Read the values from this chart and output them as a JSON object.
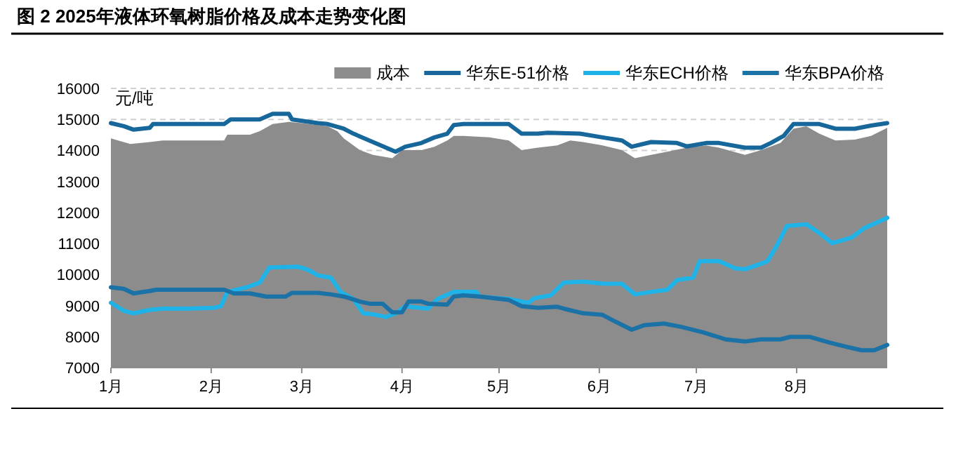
{
  "chart_data": {
    "type": "line",
    "title": "图 2 2025年液体环氧树脂价格及成本走势变化图",
    "ylabel": "元/吨",
    "xlim": [
      "2025-01-01",
      "2025-08-29"
    ],
    "xticks": [
      {
        "value": "2025-01-01",
        "label": "1月"
      },
      {
        "value": "2025-02-01",
        "label": "2月"
      },
      {
        "value": "2025-03-01",
        "label": "3月"
      },
      {
        "value": "2025-04-01",
        "label": "4月"
      },
      {
        "value": "2025-05-01",
        "label": "5月"
      },
      {
        "value": "2025-06-01",
        "label": "6月"
      },
      {
        "value": "2025-07-01",
        "label": "7月"
      },
      {
        "value": "2025-08-01",
        "label": "8月"
      }
    ],
    "ylim": [
      7000,
      16000
    ],
    "yticks": [
      7000,
      8000,
      9000,
      10000,
      11000,
      12000,
      13000,
      14000,
      15000,
      16000
    ],
    "grid": "y",
    "legend": "top right",
    "line_style": "solid",
    "series": [
      {
        "name": "成本",
        "type": "area",
        "color": "#8c8c8c",
        "x": [
          "2025-01-01",
          "2025-01-07",
          "2025-01-13",
          "2025-01-17",
          "2025-02-05",
          "2025-02-06",
          "2025-02-13",
          "2025-02-16",
          "2025-02-20",
          "2025-02-25",
          "2025-03-01",
          "2025-03-09",
          "2025-03-12",
          "2025-03-14",
          "2025-03-19",
          "2025-03-23",
          "2025-03-29",
          "2025-04-01",
          "2025-04-07",
          "2025-04-11",
          "2025-04-15",
          "2025-04-17",
          "2025-04-20",
          "2025-04-28",
          "2025-05-04",
          "2025-05-08",
          "2025-05-13",
          "2025-05-19",
          "2025-05-23",
          "2025-05-27",
          "2025-06-02",
          "2025-06-08",
          "2025-06-12",
          "2025-06-17",
          "2025-06-22",
          "2025-06-28",
          "2025-07-04",
          "2025-07-08",
          "2025-07-16",
          "2025-07-21",
          "2025-07-27",
          "2025-07-31",
          "2025-08-04",
          "2025-08-08",
          "2025-08-13",
          "2025-08-19",
          "2025-08-24",
          "2025-08-29"
        ],
        "values": [
          14390,
          14210,
          14270,
          14320,
          14320,
          14510,
          14510,
          14620,
          14850,
          14920,
          14880,
          14780,
          14620,
          14390,
          14010,
          13860,
          13750,
          14010,
          14010,
          14120,
          14320,
          14470,
          14470,
          14420,
          14320,
          14010,
          14090,
          14160,
          14320,
          14270,
          14160,
          14010,
          13750,
          13860,
          13960,
          14090,
          14160,
          14090,
          13860,
          14010,
          14240,
          14700,
          14780,
          14540,
          14320,
          14350,
          14470,
          14730
        ]
      },
      {
        "name": "华东E-51价格",
        "type": "line",
        "color": "#17679a",
        "x": [
          "2025-01-01",
          "2025-01-05",
          "2025-01-08",
          "2025-01-13",
          "2025-01-14",
          "2025-02-05",
          "2025-02-07",
          "2025-02-16",
          "2025-02-20",
          "2025-02-25",
          "2025-02-26",
          "2025-03-06",
          "2025-03-09",
          "2025-03-14",
          "2025-03-17",
          "2025-03-23",
          "2025-03-30",
          "2025-04-02",
          "2025-04-07",
          "2025-04-11",
          "2025-04-15",
          "2025-04-17",
          "2025-04-20",
          "2025-05-04",
          "2025-05-08",
          "2025-05-13",
          "2025-05-16",
          "2025-05-26",
          "2025-06-02",
          "2025-06-08",
          "2025-06-11",
          "2025-06-17",
          "2025-06-25",
          "2025-06-28",
          "2025-07-04",
          "2025-07-08",
          "2025-07-16",
          "2025-07-21",
          "2025-07-24",
          "2025-07-28",
          "2025-07-31",
          "2025-08-08",
          "2025-08-13",
          "2025-08-19",
          "2025-08-24",
          "2025-08-29"
        ],
        "values": [
          14880,
          14780,
          14670,
          14730,
          14850,
          14850,
          15000,
          15000,
          15180,
          15180,
          15000,
          14880,
          14850,
          14700,
          14540,
          14270,
          13960,
          14120,
          14240,
          14420,
          14540,
          14820,
          14850,
          14850,
          14540,
          14540,
          14570,
          14540,
          14420,
          14320,
          14120,
          14270,
          14240,
          14130,
          14240,
          14240,
          14090,
          14090,
          14240,
          14470,
          14850,
          14850,
          14700,
          14700,
          14800,
          14880
        ]
      },
      {
        "name": "华东ECH价格",
        "type": "line",
        "color": "#1fb2e6",
        "x": [
          "2025-01-01",
          "2025-01-05",
          "2025-01-08",
          "2025-01-13",
          "2025-01-17",
          "2025-01-24",
          "2025-02-02",
          "2025-02-04",
          "2025-02-06",
          "2025-02-12",
          "2025-02-16",
          "2025-02-19",
          "2025-02-28",
          "2025-03-03",
          "2025-03-06",
          "2025-03-10",
          "2025-03-13",
          "2025-03-17",
          "2025-03-20",
          "2025-03-23",
          "2025-03-27",
          "2025-03-30",
          "2025-04-02",
          "2025-04-09",
          "2025-04-12",
          "2025-04-17",
          "2025-04-24",
          "2025-04-25",
          "2025-05-04",
          "2025-05-10",
          "2025-05-12",
          "2025-05-17",
          "2025-05-21",
          "2025-05-27",
          "2025-06-02",
          "2025-06-08",
          "2025-06-12",
          "2025-06-17",
          "2025-06-22",
          "2025-06-25",
          "2025-06-30",
          "2025-07-02",
          "2025-07-08",
          "2025-07-13",
          "2025-07-16",
          "2025-07-21",
          "2025-07-23",
          "2025-07-26",
          "2025-07-29",
          "2025-08-04",
          "2025-08-08",
          "2025-08-12",
          "2025-08-18",
          "2025-08-22",
          "2025-08-29"
        ],
        "values": [
          9090,
          8830,
          8750,
          8860,
          8900,
          8900,
          8930,
          8980,
          9440,
          9590,
          9740,
          10230,
          10250,
          10150,
          9970,
          9900,
          9440,
          9210,
          8750,
          8720,
          8630,
          8750,
          8980,
          8900,
          9210,
          9440,
          9440,
          9290,
          9210,
          9090,
          9240,
          9330,
          9740,
          9770,
          9710,
          9700,
          9360,
          9440,
          9510,
          9820,
          9900,
          10430,
          10430,
          10200,
          10170,
          10350,
          10430,
          10960,
          11570,
          11620,
          11340,
          11010,
          11190,
          11500,
          11830
        ]
      },
      {
        "name": "华东BPA价格",
        "type": "line",
        "color": "#1b72a6",
        "x": [
          "2025-01-01",
          "2025-01-05",
          "2025-01-08",
          "2025-01-13",
          "2025-01-15",
          "2025-02-05",
          "2025-02-08",
          "2025-02-13",
          "2025-02-18",
          "2025-02-24",
          "2025-02-26",
          "2025-03-06",
          "2025-03-10",
          "2025-03-14",
          "2025-03-19",
          "2025-03-22",
          "2025-03-26",
          "2025-03-29",
          "2025-04-01",
          "2025-04-03",
          "2025-04-07",
          "2025-04-09",
          "2025-04-15",
          "2025-04-17",
          "2025-04-20",
          "2025-04-25",
          "2025-05-04",
          "2025-05-08",
          "2025-05-13",
          "2025-05-19",
          "2025-05-21",
          "2025-05-27",
          "2025-06-02",
          "2025-06-06",
          "2025-06-11",
          "2025-06-15",
          "2025-06-21",
          "2025-06-26",
          "2025-07-03",
          "2025-07-10",
          "2025-07-16",
          "2025-07-21",
          "2025-07-27",
          "2025-07-30",
          "2025-08-05",
          "2025-08-11",
          "2025-08-16",
          "2025-08-21",
          "2025-08-25",
          "2025-08-29"
        ],
        "values": [
          9590,
          9540,
          9390,
          9470,
          9510,
          9510,
          9390,
          9390,
          9290,
          9290,
          9410,
          9410,
          9360,
          9290,
          9130,
          9060,
          9060,
          8780,
          8780,
          9130,
          9130,
          9060,
          9030,
          9290,
          9330,
          9290,
          9180,
          8980,
          8930,
          8960,
          8900,
          8750,
          8700,
          8480,
          8220,
          8370,
          8420,
          8320,
          8140,
          7910,
          7840,
          7910,
          7910,
          7990,
          7990,
          7810,
          7680,
          7560,
          7560,
          7730
        ]
      }
    ]
  }
}
